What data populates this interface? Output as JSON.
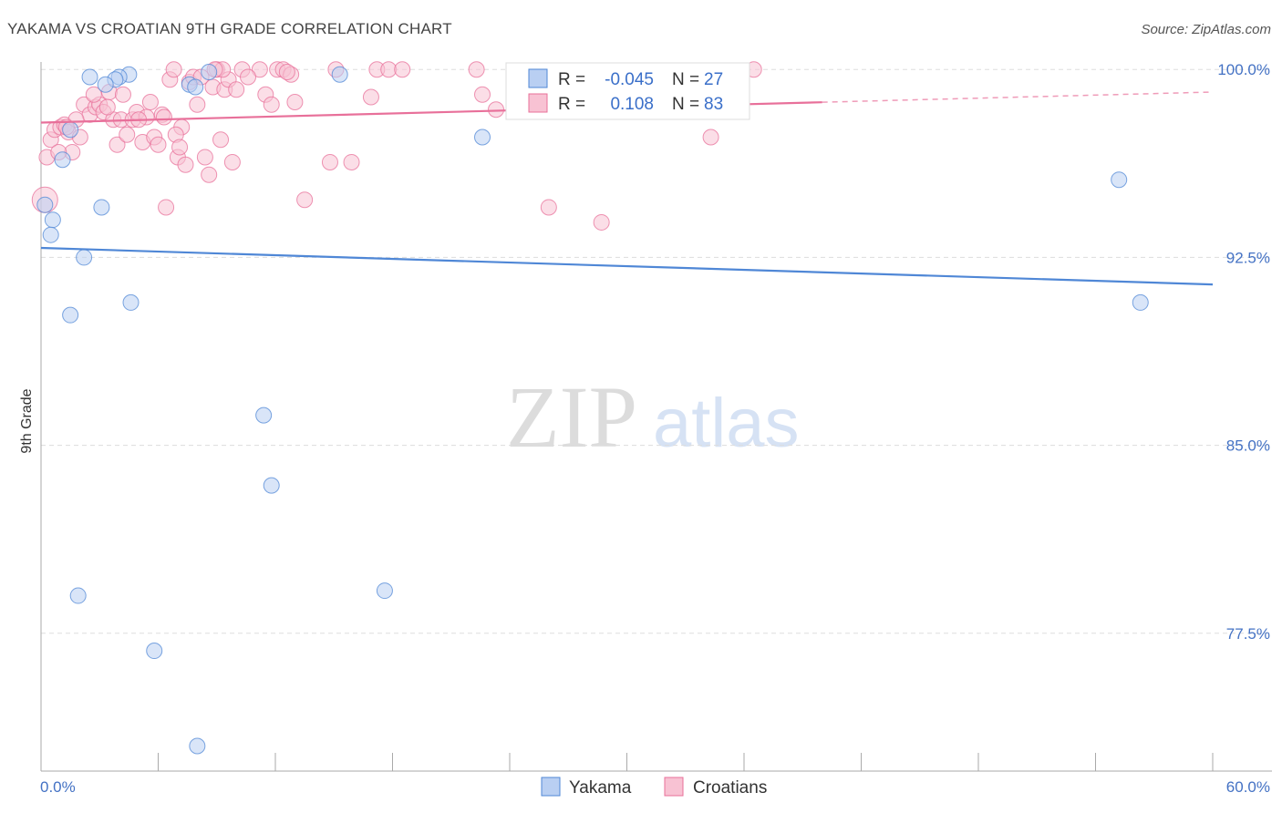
{
  "title": "YAKAMA VS CROATIAN 9TH GRADE CORRELATION CHART",
  "source": "Source: ZipAtlas.com",
  "watermark": {
    "zip": "ZIP",
    "atlas": "atlas"
  },
  "colors": {
    "yakama": "#4f87d6",
    "croatians": "#e8709a",
    "yakama_fill": "#b9cff2",
    "croatians_fill": "#f8c2d3",
    "tick": "#4472c4"
  },
  "legend_top": [
    {
      "r_label": "R =",
      "r_value": "-0.045",
      "n_label": "N =",
      "n_value": "27"
    },
    {
      "r_label": "R =",
      "r_value": "0.108",
      "n_label": "N =",
      "n_value": "83"
    }
  ],
  "legend_bottom": [
    "Yakama",
    "Croatians"
  ],
  "chart_data": {
    "type": "scatter",
    "ylabel": "9th Grade",
    "xlim": [
      0,
      60
    ],
    "ylim": [
      72,
      100.3
    ],
    "x_tick_labels": [
      {
        "value": 0,
        "label": "0.0%"
      },
      {
        "value": 60,
        "label": "60.0%"
      }
    ],
    "y_tick_labels": [
      {
        "value": 100,
        "label": "100.0%"
      },
      {
        "value": 92.5,
        "label": "92.5%"
      },
      {
        "value": 85,
        "label": "85.0%"
      },
      {
        "value": 77.5,
        "label": "77.5%"
      }
    ],
    "series": [
      {
        "name": "Yakama",
        "trend": {
          "x0": 0,
          "y0": 92.88,
          "x1": 60,
          "y1": 91.42,
          "solid_until": 60
        },
        "points": [
          [
            2.5,
            99.7
          ],
          [
            4.5,
            99.8
          ],
          [
            4.0,
            99.7
          ],
          [
            3.8,
            99.6
          ],
          [
            3.3,
            99.4
          ],
          [
            7.6,
            99.4
          ],
          [
            7.9,
            99.3
          ],
          [
            15.3,
            99.8
          ],
          [
            1.5,
            97.6
          ],
          [
            22.6,
            97.3
          ],
          [
            1.1,
            96.4
          ],
          [
            3.1,
            94.5
          ],
          [
            0.6,
            94.0
          ],
          [
            0.5,
            93.4
          ],
          [
            2.2,
            92.5
          ],
          [
            1.5,
            90.2
          ],
          [
            4.6,
            90.7
          ],
          [
            11.4,
            86.2
          ],
          [
            11.8,
            83.4
          ],
          [
            55.2,
            95.6
          ],
          [
            56.3,
            90.7
          ],
          [
            1.9,
            79.0
          ],
          [
            17.6,
            79.2
          ],
          [
            5.8,
            76.8
          ],
          [
            8.0,
            73.0
          ],
          [
            0.2,
            94.6
          ],
          [
            8.6,
            99.9
          ]
        ]
      },
      {
        "name": "Croatians",
        "trend": {
          "x0": 0,
          "y0": 97.88,
          "x1": 60,
          "y1": 99.1,
          "solid_until": 40
        },
        "points": [
          [
            0.2,
            94.8
          ],
          [
            0.3,
            96.5
          ],
          [
            0.5,
            97.2
          ],
          [
            0.7,
            97.6
          ],
          [
            1.0,
            97.7
          ],
          [
            1.2,
            97.8
          ],
          [
            1.4,
            97.5
          ],
          [
            1.6,
            96.7
          ],
          [
            2.0,
            97.3
          ],
          [
            2.2,
            98.6
          ],
          [
            2.5,
            98.2
          ],
          [
            2.8,
            98.5
          ],
          [
            3.0,
            98.6
          ],
          [
            3.2,
            98.3
          ],
          [
            3.5,
            99.1
          ],
          [
            3.7,
            98.0
          ],
          [
            3.9,
            97.0
          ],
          [
            4.1,
            98.0
          ],
          [
            4.4,
            97.4
          ],
          [
            4.7,
            98.0
          ],
          [
            4.9,
            98.3
          ],
          [
            5.2,
            97.1
          ],
          [
            5.4,
            98.1
          ],
          [
            5.6,
            98.7
          ],
          [
            5.8,
            97.3
          ],
          [
            6.0,
            97.0
          ],
          [
            6.2,
            98.2
          ],
          [
            6.4,
            94.5
          ],
          [
            6.6,
            99.6
          ],
          [
            6.8,
            100.0
          ],
          [
            7.0,
            96.5
          ],
          [
            7.2,
            97.7
          ],
          [
            7.4,
            96.2
          ],
          [
            7.6,
            99.5
          ],
          [
            7.8,
            99.7
          ],
          [
            8.0,
            98.6
          ],
          [
            8.2,
            99.7
          ],
          [
            8.4,
            96.5
          ],
          [
            8.6,
            95.8
          ],
          [
            8.8,
            99.3
          ],
          [
            9.0,
            100.0
          ],
          [
            9.2,
            97.2
          ],
          [
            9.4,
            99.2
          ],
          [
            9.6,
            99.6
          ],
          [
            9.8,
            96.3
          ],
          [
            10.0,
            99.2
          ],
          [
            10.3,
            100.0
          ],
          [
            11.2,
            100.0
          ],
          [
            11.5,
            99.0
          ],
          [
            11.8,
            98.6
          ],
          [
            12.1,
            100.0
          ],
          [
            12.4,
            100.0
          ],
          [
            12.8,
            99.8
          ],
          [
            13.0,
            98.7
          ],
          [
            13.5,
            94.8
          ],
          [
            14.8,
            96.3
          ],
          [
            15.1,
            100.0
          ],
          [
            15.9,
            96.3
          ],
          [
            16.9,
            98.9
          ],
          [
            17.2,
            100.0
          ],
          [
            17.8,
            100.0
          ],
          [
            18.5,
            100.0
          ],
          [
            22.3,
            100.0
          ],
          [
            22.6,
            99.0
          ],
          [
            23.3,
            98.4
          ],
          [
            26.0,
            94.5
          ],
          [
            28.7,
            93.9
          ],
          [
            34.3,
            97.3
          ],
          [
            36.5,
            100.0
          ],
          [
            0.9,
            96.7
          ],
          [
            1.8,
            98.0
          ],
          [
            3.4,
            98.5
          ],
          [
            6.9,
            97.4
          ],
          [
            9.3,
            100.0
          ],
          [
            5.0,
            98.0
          ],
          [
            2.7,
            99.0
          ],
          [
            7.1,
            96.9
          ],
          [
            10.6,
            99.7
          ],
          [
            12.6,
            99.9
          ],
          [
            4.2,
            99.0
          ],
          [
            6.3,
            98.1
          ],
          [
            8.9,
            100.0
          ],
          [
            1.3,
            97.7
          ]
        ]
      }
    ]
  }
}
